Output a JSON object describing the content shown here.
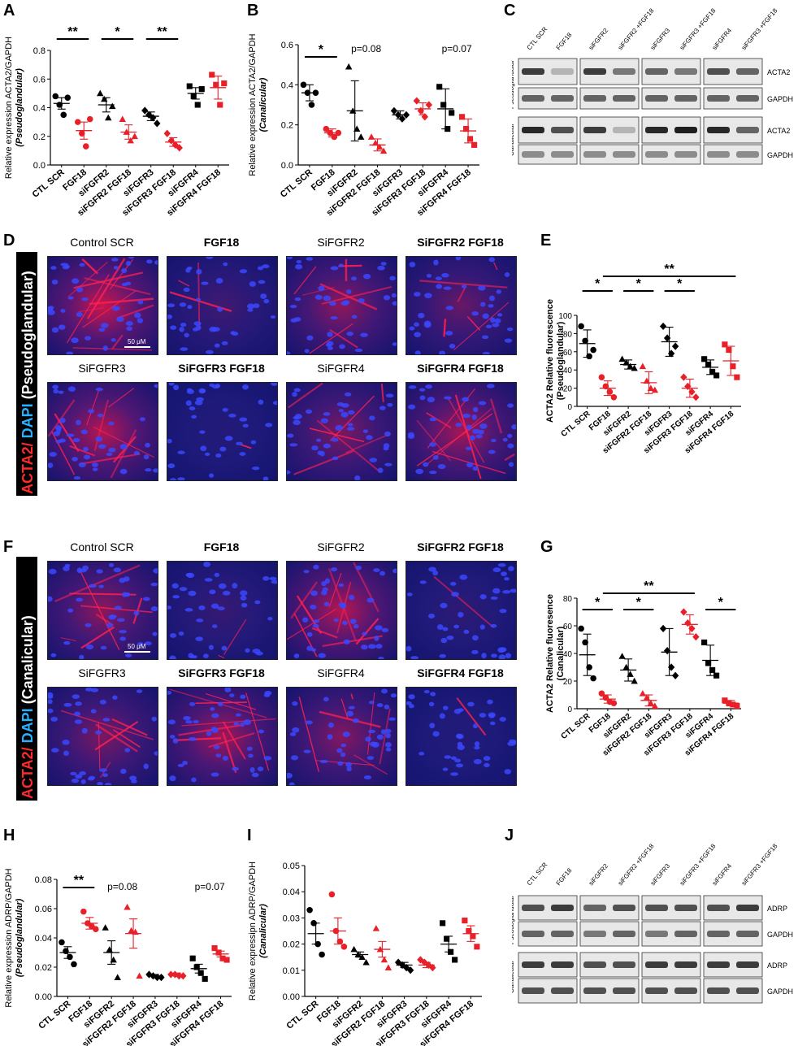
{
  "panels": {
    "A": "A",
    "B": "B",
    "C": "C",
    "D": "D",
    "E": "E",
    "F": "F",
    "G": "G",
    "H": "H",
    "I": "I",
    "J": "J"
  },
  "colors": {
    "control": "#000000",
    "fgf18": "#e8202a",
    "blue_nuclei": "#1a23c8",
    "red_actin": "#e0143c"
  },
  "blots": {
    "C": {
      "lanes": [
        "CTL SCR",
        "FGF18",
        "siFGFR2",
        "siFGFR2 +FGF18",
        "siFGFR3",
        "siFGFR3 +FGF18",
        "siFGFR4",
        "siFGFR3 +FGF18"
      ],
      "row_groups": [
        "Pseudoglandular",
        "Canalicular"
      ],
      "bands": [
        "ACTA2",
        "GAPDH",
        "ACTA2",
        "GAPDH"
      ]
    },
    "J": {
      "lanes": [
        "CTL SCR",
        "FGF18",
        "siFGFR2",
        "siFGFR2 +FGF18",
        "siFGFR3",
        "siFGFR3 +FGF18",
        "siFGFR4",
        "siFGFR3 +FGF18"
      ],
      "row_groups": [
        "Pseudoglandular",
        "Canalicular"
      ],
      "bands": [
        "ADRP",
        "GAPDH",
        "ADRP",
        "GAPDH"
      ]
    }
  },
  "micrographs": {
    "D": {
      "side_label_a": "ACTA2/",
      "side_label_b": " DAPI",
      "side_label_c": " (Pseudoglandular)",
      "labels": [
        "Control SCR",
        "FGF18",
        "SiFGFR2",
        "SiFGFR2 FGF18",
        "SiFGFR3",
        "SiFGFR3 FGF18",
        "SiFGFR4",
        "SiFGFR4 FGF18"
      ],
      "scale": "50 μM"
    },
    "F": {
      "side_label_a": "ACTA2/",
      "side_label_b": " DAPI",
      "side_label_c": " (Canalicular)",
      "labels": [
        "Control SCR",
        "FGF18",
        "SiFGFR2",
        "SiFGFR2 FGF18",
        "SiFGFR3",
        "SiFGFR3 FGF18",
        "SiFGFR4",
        "SiFGFR4 FGF18"
      ],
      "scale": "50 μM"
    }
  },
  "chart_data": [
    {
      "id": "A",
      "type": "scatter",
      "ylabel_main": "Relative expression ACTA2/GAPDH",
      "ylabel_sub": "(Pseudoglandular)",
      "ylim": [
        0,
        0.8
      ],
      "yticks": [
        "0.0",
        "0.2",
        "0.4",
        "0.6",
        "0.8"
      ],
      "ytick_values": [
        0,
        0.2,
        0.4,
        0.6,
        0.8
      ],
      "categories": [
        "CTL SCR",
        "FGF18",
        "siFGFR2",
        "siFGFR2 FGF18",
        "siFGFR3",
        "siFGFR3 FGF18",
        "siFGFR4",
        "siFGFR4 FGF18"
      ],
      "marker": [
        "circle",
        "circle",
        "triangle",
        "triangle",
        "diamond",
        "diamond",
        "square",
        "square"
      ],
      "color": [
        "black",
        "red",
        "black",
        "red",
        "black",
        "red",
        "black",
        "red"
      ],
      "points": [
        [
          0.48,
          0.42,
          0.35,
          0.47
        ],
        [
          0.3,
          0.22,
          0.13,
          0.32
        ],
        [
          0.5,
          0.46,
          0.33,
          0.41
        ],
        [
          0.32,
          0.23,
          0.17,
          0.2
        ],
        [
          0.38,
          0.35,
          0.33,
          0.29
        ],
        [
          0.22,
          0.17,
          0.14,
          0.12
        ],
        [
          0.55,
          0.48,
          0.42,
          0.53
        ],
        [
          0.63,
          0.56,
          0.42,
          0.57
        ]
      ],
      "mean": [
        0.43,
        0.24,
        0.42,
        0.23,
        0.34,
        0.16,
        0.5,
        0.54
      ],
      "sem": [
        0.04,
        0.06,
        0.05,
        0.05,
        0.03,
        0.03,
        0.04,
        0.08
      ],
      "annotations": [
        {
          "text": "**",
          "from": 0,
          "to": 1
        },
        {
          "text": "*",
          "from": 2,
          "to": 3
        },
        {
          "text": "**",
          "from": 4,
          "to": 5
        }
      ]
    },
    {
      "id": "B",
      "type": "scatter",
      "ylabel_main": "Relative expression ACTA2/GAPDH",
      "ylabel_sub": "(Canalicular)",
      "ylim": [
        0,
        0.6
      ],
      "yticks": [
        "0.0",
        "0.2",
        "0.4",
        "0.6"
      ],
      "ytick_values": [
        0,
        0.2,
        0.4,
        0.6
      ],
      "categories": [
        "CTL SCR",
        "FGF18",
        "siFGFR2",
        "siFGFR2 FGF18",
        "siFGFR3",
        "siFGFR3 FGF18",
        "siFGFR4",
        "siFGFR4 FGF18"
      ],
      "marker": [
        "circle",
        "circle",
        "triangle",
        "triangle",
        "diamond",
        "diamond",
        "square",
        "square"
      ],
      "color": [
        "black",
        "red",
        "black",
        "red",
        "black",
        "red",
        "black",
        "red"
      ],
      "points": [
        [
          0.4,
          0.36,
          0.3,
          0.36
        ],
        [
          0.18,
          0.16,
          0.14,
          0.16
        ],
        [
          0.49,
          0.27,
          0.18,
          0.14
        ],
        [
          0.14,
          0.11,
          0.09,
          0.07
        ],
        [
          0.27,
          0.25,
          0.23,
          0.25
        ],
        [
          0.32,
          0.27,
          0.24,
          0.3
        ],
        [
          0.39,
          0.3,
          0.18,
          0.26
        ],
        [
          0.24,
          0.18,
          0.13,
          0.1
        ]
      ],
      "mean": [
        0.36,
        0.16,
        0.27,
        0.1,
        0.25,
        0.28,
        0.28,
        0.17
      ],
      "sem": [
        0.04,
        0.02,
        0.15,
        0.03,
        0.02,
        0.03,
        0.1,
        0.06
      ],
      "annotations": [
        {
          "text": "*",
          "from": 0,
          "to": 1
        },
        {
          "text": "p=0.08",
          "at": 2.5
        },
        {
          "text": "p=0.07",
          "at": 6.5
        }
      ]
    },
    {
      "id": "E",
      "type": "scatter",
      "ylabel_main": "ACTA2 Relative fluorescence",
      "ylabel_sub": "(Pseudoglandular)",
      "ylim": [
        0,
        100
      ],
      "yticks": [
        "0",
        "20",
        "40",
        "60",
        "80",
        "100"
      ],
      "ytick_values": [
        0,
        20,
        40,
        60,
        80,
        100
      ],
      "categories": [
        "CTL SCR",
        "FGF18",
        "siFGFR2",
        "siFGFR2 FGF18",
        "siFGFR3",
        "siFGFR3 FGF18",
        "siFGFR4",
        "siFGFR4 FGF18"
      ],
      "marker": [
        "circle",
        "circle",
        "triangle",
        "triangle",
        "diamond",
        "diamond",
        "square",
        "square"
      ],
      "color": [
        "black",
        "red",
        "black",
        "red",
        "black",
        "red",
        "black",
        "red"
      ],
      "points": [
        [
          88,
          72,
          55,
          62
        ],
        [
          32,
          22,
          16,
          10
        ],
        [
          52,
          48,
          44,
          42
        ],
        [
          44,
          28,
          20,
          18
        ],
        [
          88,
          75,
          58,
          66
        ],
        [
          32,
          22,
          16,
          10
        ],
        [
          52,
          46,
          38,
          34
        ],
        [
          68,
          62,
          44,
          32
        ]
      ],
      "mean": [
        69,
        20,
        46,
        26,
        71,
        20,
        43,
        50
      ],
      "sem": [
        15,
        8,
        5,
        12,
        16,
        10,
        8,
        16
      ],
      "annotations": [
        {
          "text": "*",
          "from": 0,
          "to": 1
        },
        {
          "text": "*",
          "from": 2,
          "to": 3
        },
        {
          "text": "*",
          "from": 4,
          "to": 5
        },
        {
          "text": "**",
          "from": 1,
          "to": 7,
          "level": 2
        }
      ]
    },
    {
      "id": "G",
      "type": "scatter",
      "ylabel_main": "ACTA2 Relative fluoresence",
      "ylabel_sub": "(Canalicular)",
      "ylim": [
        0,
        80
      ],
      "yticks": [
        "0",
        "20",
        "40",
        "60",
        "80"
      ],
      "ytick_values": [
        0,
        20,
        40,
        60,
        80
      ],
      "categories": [
        "CTL SCR",
        "FGF18",
        "siFGFR2",
        "siFGFR2 FGF18",
        "siFGFR3",
        "siFGFR3 FGF18",
        "siFGFR4",
        "siFGFR4 FGF18"
      ],
      "marker": [
        "circle",
        "circle",
        "triangle",
        "triangle",
        "diamond",
        "diamond",
        "square",
        "square"
      ],
      "color": [
        "black",
        "red",
        "black",
        "red",
        "black",
        "red",
        "black",
        "red"
      ],
      "points": [
        [
          58,
          48,
          30,
          22
        ],
        [
          11,
          8,
          5,
          4
        ],
        [
          38,
          30,
          25,
          20
        ],
        [
          11,
          8,
          4,
          2
        ],
        [
          58,
          42,
          30,
          24
        ],
        [
          70,
          62,
          58,
          52
        ],
        [
          48,
          33,
          28,
          24
        ],
        [
          6,
          4,
          3,
          2
        ]
      ],
      "mean": [
        39,
        7,
        28,
        6,
        41,
        61,
        35,
        4
      ],
      "sem": [
        15,
        3,
        8,
        4,
        17,
        7,
        11,
        2
      ],
      "annotations": [
        {
          "text": "*",
          "from": 0,
          "to": 1
        },
        {
          "text": "*",
          "from": 2,
          "to": 3
        },
        {
          "text": "*",
          "from": 6,
          "to": 7
        },
        {
          "text": "**",
          "from": 1,
          "to": 5,
          "level": 2
        }
      ]
    },
    {
      "id": "H",
      "type": "scatter",
      "ylabel_main": "Relative expression ADRP/GAPDH",
      "ylabel_sub": "(Pseudoglandular)",
      "ylim": [
        0,
        0.08
      ],
      "yticks": [
        "0.00",
        "0.02",
        "0.04",
        "0.06",
        "0.08"
      ],
      "ytick_values": [
        0,
        0.02,
        0.04,
        0.06,
        0.08
      ],
      "categories": [
        "CTL SCR",
        "FGF18",
        "siFGFR2",
        "siFGFR2 FGF18",
        "siFGFR3",
        "siFGFR3 FGF18",
        "siFGFR4",
        "siFGFR4 FGF18"
      ],
      "marker": [
        "circle",
        "circle",
        "triangle",
        "triangle",
        "diamond",
        "diamond",
        "square",
        "square"
      ],
      "color": [
        "black",
        "red",
        "black",
        "red",
        "black",
        "red",
        "black",
        "red"
      ],
      "points": [
        [
          0.037,
          0.031,
          0.027,
          0.022
        ],
        [
          0.058,
          0.05,
          0.048,
          0.046
        ],
        [
          0.047,
          0.032,
          0.025,
          0.013
        ],
        [
          0.061,
          0.045,
          0.044,
          0.014
        ],
        [
          0.015,
          0.014,
          0.013,
          0.013
        ],
        [
          0.015,
          0.015,
          0.014,
          0.014
        ],
        [
          0.026,
          0.02,
          0.016,
          0.012
        ],
        [
          0.033,
          0.03,
          0.026,
          0.025
        ]
      ],
      "mean": [
        0.03,
        0.05,
        0.03,
        0.043,
        0.014,
        0.015,
        0.019,
        0.029
      ],
      "sem": [
        0.004,
        0.004,
        0.008,
        0.01,
        0.001,
        0.001,
        0.003,
        0.002
      ],
      "annotations": [
        {
          "text": "**",
          "from": 0,
          "to": 1
        },
        {
          "text": "p=0.08",
          "at": 2.5
        },
        {
          "text": "p=0.07",
          "at": 6.5
        }
      ]
    },
    {
      "id": "I",
      "type": "scatter",
      "ylabel_main": "Relative expressipn ADRP/GAPDH",
      "ylabel_sub": "(Canalicular)",
      "ylim": [
        0,
        0.05
      ],
      "yticks": [
        "0.00",
        "0.01",
        "0.02",
        "0.03",
        "0.04",
        "0.05"
      ],
      "ytick_values": [
        0,
        0.01,
        0.02,
        0.03,
        0.04,
        0.05
      ],
      "categories": [
        "CTL SCR",
        "FGF18",
        "siFGFR2",
        "siFGFR2 FGF18",
        "siFGFR3",
        "siFGFR3 FGF18",
        "siFGFR4",
        "siFGFR4 FGF18"
      ],
      "marker": [
        "circle",
        "circle",
        "triangle",
        "triangle",
        "diamond",
        "diamond",
        "square",
        "square"
      ],
      "color": [
        "black",
        "red",
        "black",
        "red",
        "black",
        "red",
        "black",
        "red"
      ],
      "points": [
        [
          0.033,
          0.028,
          0.02,
          0.016
        ],
        [
          0.039,
          0.025,
          0.021,
          0.019
        ],
        [
          0.018,
          0.016,
          0.015,
          0.013
        ],
        [
          0.026,
          0.018,
          0.014,
          0.011
        ],
        [
          0.013,
          0.012,
          0.011,
          0.01
        ],
        [
          0.014,
          0.013,
          0.012,
          0.011
        ],
        [
          0.028,
          0.022,
          0.017,
          0.014
        ],
        [
          0.029,
          0.025,
          0.023,
          0.019
        ]
      ],
      "mean": [
        0.024,
        0.025,
        0.016,
        0.018,
        0.012,
        0.012,
        0.02,
        0.024
      ],
      "sem": [
        0.004,
        0.005,
        0.001,
        0.003,
        0.001,
        0.001,
        0.003,
        0.003
      ],
      "annotations": []
    }
  ]
}
